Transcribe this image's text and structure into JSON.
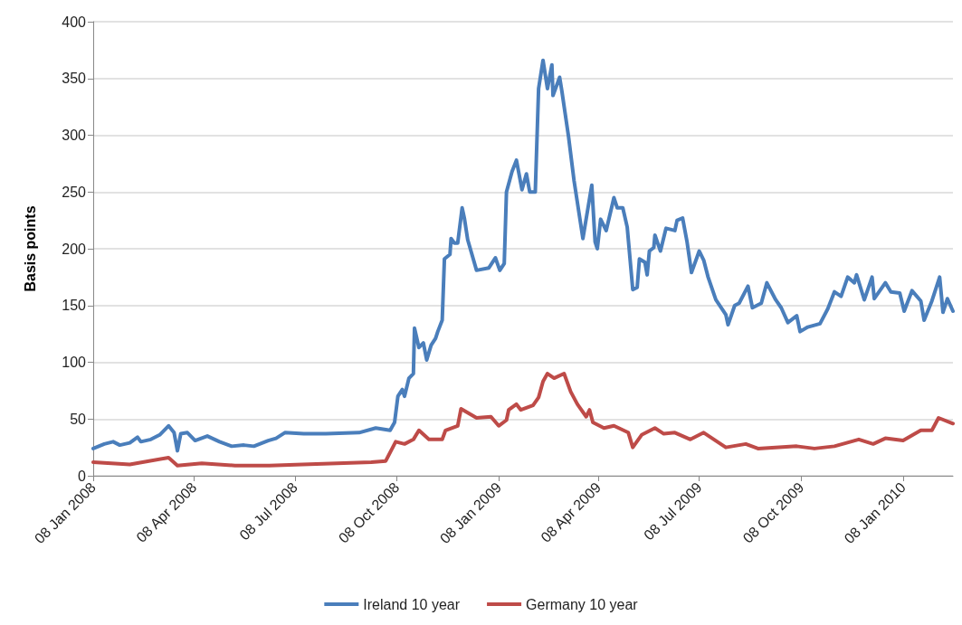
{
  "chart_data": {
    "type": "line",
    "ylabel": "Basis points",
    "xlim": [
      "2008-01-08",
      "2010-02-22"
    ],
    "xticks": [
      {
        "value": "2008-01-08",
        "label": "08 Jan 2008"
      },
      {
        "value": "2008-04-08",
        "label": "08 Apr 2008"
      },
      {
        "value": "2008-07-08",
        "label": "08 Jul 2008"
      },
      {
        "value": "2008-10-08",
        "label": "08 Oct 2008"
      },
      {
        "value": "2009-01-08",
        "label": "08 Jan 2009"
      },
      {
        "value": "2009-04-08",
        "label": "08 Apr 2009"
      },
      {
        "value": "2009-07-08",
        "label": "08 Jul 2009"
      },
      {
        "value": "2009-10-08",
        "label": "08 Oct 2009"
      },
      {
        "value": "2010-01-08",
        "label": "08 Jan 2010"
      }
    ],
    "ylim": [
      0,
      400
    ],
    "yticks": [
      0,
      50,
      100,
      150,
      200,
      250,
      300,
      350,
      400
    ],
    "grid": "y",
    "legend": "bottom",
    "marker": "none",
    "line_style": "solid",
    "series": [
      {
        "name": "Ireland 10 year",
        "color": "#4a7ebb",
        "x": [
          "2008-01-08",
          "2008-01-18",
          "2008-01-26",
          "2008-02-01",
          "2008-02-10",
          "2008-02-17",
          "2008-02-20",
          "2008-02-29",
          "2008-03-08",
          "2008-03-16",
          "2008-03-21",
          "2008-03-24",
          "2008-03-27",
          "2008-04-02",
          "2008-04-09",
          "2008-04-20",
          "2008-05-01",
          "2008-05-12",
          "2008-05-23",
          "2008-06-01",
          "2008-06-14",
          "2008-06-21",
          "2008-06-29",
          "2008-07-16",
          "2008-08-05",
          "2008-09-04",
          "2008-09-19",
          "2008-10-02",
          "2008-10-06",
          "2008-10-09",
          "2008-10-13",
          "2008-10-15",
          "2008-10-19",
          "2008-10-23",
          "2008-10-24",
          "2008-10-28",
          "2008-11-01",
          "2008-11-04",
          "2008-11-08",
          "2008-11-12",
          "2008-11-14",
          "2008-11-18",
          "2008-11-20",
          "2008-11-25",
          "2008-11-26",
          "2008-11-29",
          "2008-12-02",
          "2008-12-06",
          "2008-12-08",
          "2008-12-11",
          "2008-12-19",
          "2008-12-30",
          "2009-01-05",
          "2009-01-09",
          "2009-01-13",
          "2009-01-15",
          "2009-01-20",
          "2009-01-24",
          "2009-01-29",
          "2009-02-02",
          "2009-02-05",
          "2009-02-10",
          "2009-02-13",
          "2009-02-17",
          "2009-02-21",
          "2009-02-25",
          "2009-02-26",
          "2009-03-04",
          "2009-03-06",
          "2009-03-12",
          "2009-03-17",
          "2009-03-25",
          "2009-04-02",
          "2009-04-05",
          "2009-04-07",
          "2009-04-10",
          "2009-04-15",
          "2009-04-22",
          "2009-04-25",
          "2009-04-30",
          "2009-05-04",
          "2009-05-09",
          "2009-05-13",
          "2009-05-15",
          "2009-05-20",
          "2009-05-22",
          "2009-05-24",
          "2009-05-28",
          "2009-05-29",
          "2009-06-03",
          "2009-06-08",
          "2009-06-16",
          "2009-06-18",
          "2009-06-23",
          "2009-06-27",
          "2009-07-01",
          "2009-07-08",
          "2009-07-12",
          "2009-07-16",
          "2009-07-23",
          "2009-08-01",
          "2009-08-03",
          "2009-08-09",
          "2009-08-13",
          "2009-08-21",
          "2009-08-25",
          "2009-09-02",
          "2009-09-07",
          "2009-09-15",
          "2009-09-20",
          "2009-09-26",
          "2009-10-04",
          "2009-10-07",
          "2009-10-14",
          "2009-10-25",
          "2009-11-01",
          "2009-11-07",
          "2009-11-13",
          "2009-11-19",
          "2009-11-25",
          "2009-11-27",
          "2009-12-04",
          "2009-12-11",
          "2009-12-13",
          "2009-12-23",
          "2009-12-28",
          "2010-01-05",
          "2010-01-09",
          "2010-01-16",
          "2010-01-24",
          "2010-01-27",
          "2010-02-03",
          "2010-02-10",
          "2010-02-13",
          "2010-02-17",
          "2010-02-22"
        ],
        "values": [
          24,
          28,
          30,
          27,
          29,
          34,
          30,
          32,
          36,
          44,
          38,
          22,
          37,
          38,
          31,
          35,
          30,
          26,
          27,
          26,
          31,
          33,
          38,
          37,
          37,
          38,
          42,
          40,
          47,
          70,
          76,
          70,
          86,
          90,
          130,
          113,
          117,
          102,
          115,
          121,
          127,
          137,
          191,
          195,
          209,
          205,
          205,
          236,
          227,
          208,
          181,
          183,
          192,
          181,
          187,
          250,
          268,
          278,
          252,
          266,
          250,
          250,
          341,
          366,
          341,
          362,
          335,
          351,
          339,
          299,
          260,
          209,
          256,
          206,
          200,
          226,
          216,
          245,
          236,
          236,
          219,
          164,
          166,
          191,
          188,
          177,
          198,
          201,
          212,
          198,
          218,
          216,
          225,
          227,
          206,
          179,
          198,
          190,
          175,
          155,
          142,
          133,
          150,
          152,
          167,
          148,
          152,
          170,
          155,
          148,
          135,
          141,
          127,
          131,
          134,
          147,
          162,
          158,
          175,
          170,
          177,
          155,
          175,
          156,
          170,
          162,
          161,
          145,
          163,
          154,
          137,
          154,
          175,
          144,
          156,
          145
        ]
      },
      {
        "name": "Germany 10 year",
        "color": "#be4b48",
        "x": [
          "2008-01-08",
          "2008-02-10",
          "2008-03-16",
          "2008-03-24",
          "2008-04-15",
          "2008-05-15",
          "2008-06-15",
          "2008-07-15",
          "2008-08-15",
          "2008-09-15",
          "2008-09-28",
          "2008-10-07",
          "2008-10-15",
          "2008-10-23",
          "2008-10-28",
          "2008-11-06",
          "2008-11-18",
          "2008-11-21",
          "2008-12-02",
          "2008-12-05",
          "2008-12-19",
          "2009-01-01",
          "2009-01-08",
          "2009-01-15",
          "2009-01-17",
          "2009-01-24",
          "2009-01-28",
          "2009-02-08",
          "2009-02-13",
          "2009-02-17",
          "2009-02-21",
          "2009-02-27",
          "2009-03-08",
          "2009-03-14",
          "2009-03-20",
          "2009-03-28",
          "2009-03-31",
          "2009-04-03",
          "2009-04-13",
          "2009-04-22",
          "2009-05-05",
          "2009-05-09",
          "2009-05-17",
          "2009-05-29",
          "2009-06-06",
          "2009-06-16",
          "2009-06-30",
          "2009-07-12",
          "2009-08-01",
          "2009-08-19",
          "2009-08-30",
          "2009-10-04",
          "2009-10-20",
          "2009-11-07",
          "2009-11-29",
          "2009-12-12",
          "2009-12-23",
          "2010-01-08",
          "2010-01-24",
          "2010-02-03",
          "2010-02-09",
          "2010-02-22"
        ],
        "values": [
          12,
          10,
          16,
          9,
          11,
          9,
          9,
          10,
          11,
          12,
          13,
          30,
          28,
          32,
          40,
          32,
          32,
          40,
          44,
          59,
          51,
          52,
          44,
          49,
          58,
          63,
          58,
          62,
          69,
          83,
          90,
          86,
          90,
          74,
          63,
          52,
          58,
          47,
          42,
          44,
          38,
          25,
          36,
          42,
          37,
          38,
          32,
          38,
          25,
          28,
          24,
          26,
          24,
          26,
          32,
          28,
          33,
          31,
          40,
          40,
          51,
          46
        ]
      }
    ]
  }
}
